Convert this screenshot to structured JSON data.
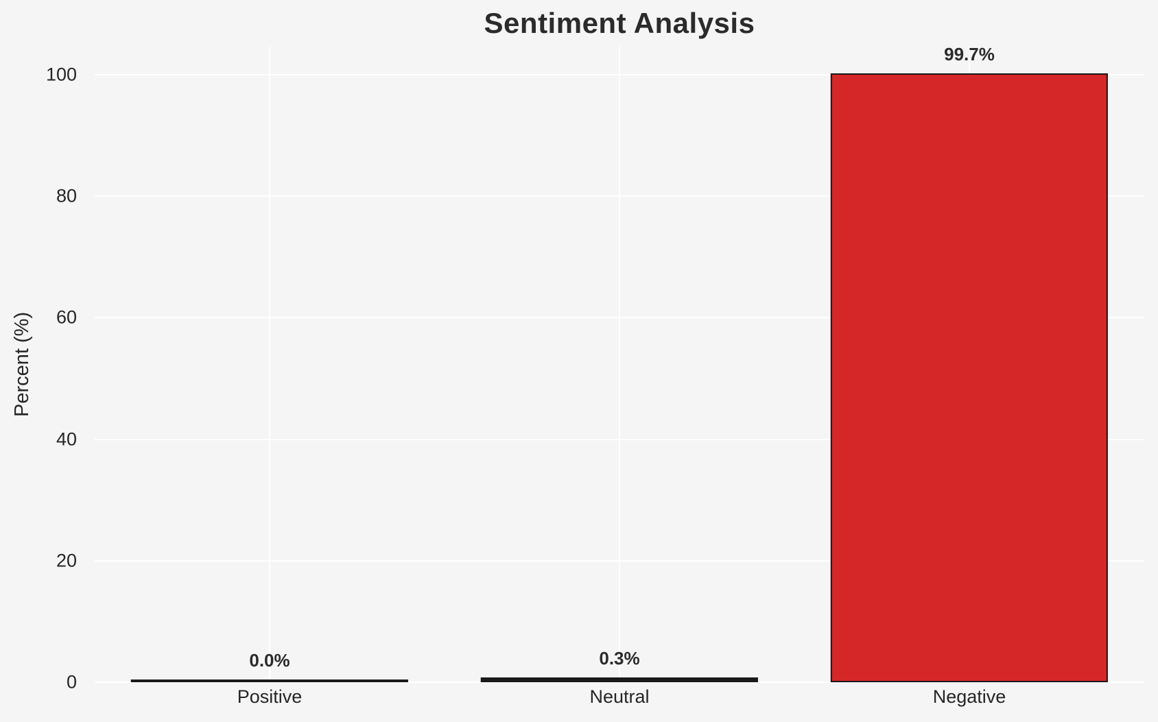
{
  "chart_data": {
    "type": "bar",
    "title": "Sentiment Analysis",
    "ylabel": "Percent (%)",
    "xlabel": "",
    "categories": [
      "Positive",
      "Neutral",
      "Negative"
    ],
    "values": [
      0.0,
      0.3,
      99.7
    ],
    "value_labels": [
      "0.0%",
      "0.3%",
      "99.7%"
    ],
    "yticks": [
      0,
      20,
      40,
      60,
      80,
      100
    ],
    "ylim": [
      0,
      104.6
    ],
    "grid": "both",
    "legend": "none",
    "colors": {
      "bar_fills": [
        "#1a1a1a",
        "#1a1a1a",
        "#d62728"
      ],
      "bar_edge": "#1a1a1a",
      "background": "#f5f5f6",
      "gridline": "#ffffff",
      "text": "#262626"
    }
  }
}
